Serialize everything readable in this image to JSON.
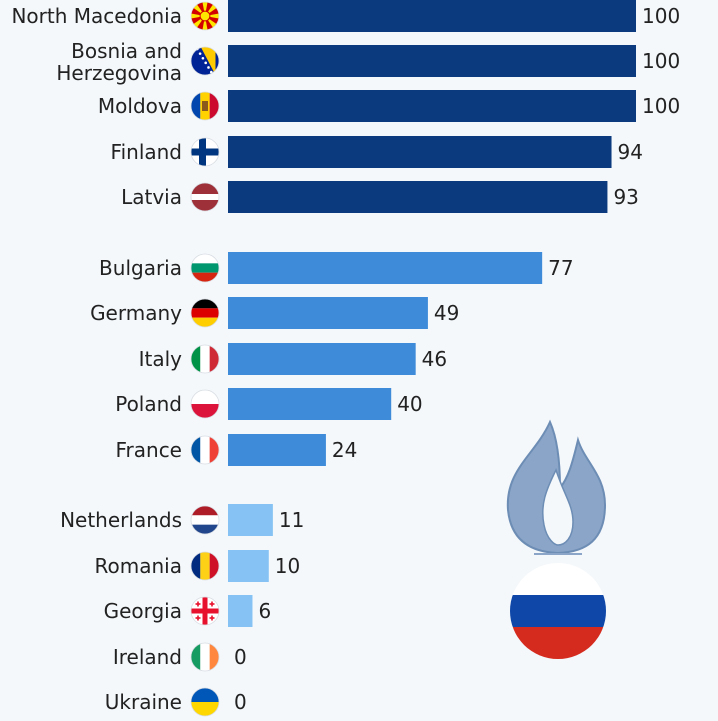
{
  "chart_data": {
    "type": "bar",
    "orientation": "horizontal",
    "categories": [
      "North Macedonia",
      "Bosnia and Herzegovina",
      "Moldova",
      "Finland",
      "Latvia",
      "Bulgaria",
      "Germany",
      "Italy",
      "Poland",
      "France",
      "Netherlands",
      "Romania",
      "Georgia",
      "Ireland",
      "Ukraine"
    ],
    "values": [
      100,
      100,
      100,
      94,
      93,
      77,
      49,
      46,
      40,
      24,
      11,
      10,
      6,
      0,
      0
    ],
    "value_labels": [
      "100",
      "100",
      "100",
      "94",
      "93",
      "77",
      "49",
      "46",
      "40",
      "24",
      "11",
      "10",
      "6",
      "0",
      "0"
    ],
    "xlim": [
      0,
      100
    ],
    "groups": [
      {
        "color": "#0b3a7e",
        "items": [
          "North Macedonia",
          "Bosnia and Herzegovina",
          "Moldova",
          "Finland",
          "Latvia"
        ]
      },
      {
        "color": "#3d8bd9",
        "items": [
          "Bulgaria",
          "Germany",
          "Italy",
          "Poland",
          "France"
        ]
      },
      {
        "color": "#86c3f4",
        "items": [
          "Netherlands",
          "Romania",
          "Georgia",
          "Ireland",
          "Ukraine"
        ]
      }
    ],
    "grid": false,
    "legend": "none"
  },
  "icons": {
    "flags": [
      "north-macedonia-flag-icon",
      "bosnia-and-herzegovina-flag-icon",
      "moldova-flag-icon",
      "finland-flag-icon",
      "latvia-flag-icon",
      "bulgaria-flag-icon",
      "germany-flag-icon",
      "italy-flag-icon",
      "poland-flag-icon",
      "france-flag-icon",
      "netherlands-flag-icon",
      "romania-flag-icon",
      "georgia-flag-icon",
      "ireland-flag-icon",
      "ukraine-flag-icon"
    ],
    "decoration": "gas-flame-russia-icon"
  },
  "colors": {
    "background": "#f4f8fb",
    "text": "#222222",
    "flame": "#8aa5c7",
    "flame_outline": "#6d8db5"
  }
}
